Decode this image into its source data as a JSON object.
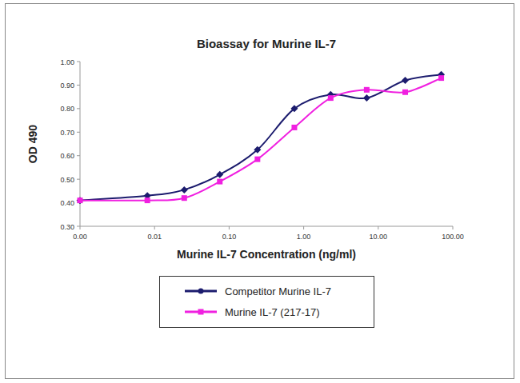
{
  "chart_data": {
    "type": "line",
    "title": "Bioassay for Murine IL-7",
    "x_label": "Murine IL-7 Concentration (ng/ml)",
    "y_label": "OD 490",
    "log": "x",
    "grid": false,
    "legend": "bottom",
    "x": [
      0.001,
      0.008,
      0.025,
      0.075,
      0.24,
      0.75,
      2.3,
      7,
      23,
      70
    ],
    "xlim": [
      0.001,
      100
    ],
    "xticks": [
      {
        "value": 0.001,
        "label": "0.00"
      },
      {
        "value": 0.01,
        "label": "0.01"
      },
      {
        "value": 0.1,
        "label": "0.10"
      },
      {
        "value": 1,
        "label": "1.00"
      },
      {
        "value": 10,
        "label": "10.00"
      },
      {
        "value": 100,
        "label": "100.00"
      }
    ],
    "ylim": [
      0.3,
      1.0
    ],
    "yticks": [
      {
        "value": 0.3,
        "label": "0.30"
      },
      {
        "value": 0.4,
        "label": "0.40"
      },
      {
        "value": 0.5,
        "label": "0.50"
      },
      {
        "value": 0.6,
        "label": "0.60"
      },
      {
        "value": 0.7,
        "label": "0.70"
      },
      {
        "value": 0.8,
        "label": "0.80"
      },
      {
        "value": 0.9,
        "label": "0.90"
      },
      {
        "value": 1.0,
        "label": "1.00"
      }
    ],
    "series": [
      {
        "name": "Competitor Murine IL-7",
        "color": "#1c1c6e",
        "marker": "diamond",
        "line_style": "solid",
        "values": [
          0.41,
          0.43,
          0.455,
          0.52,
          0.625,
          0.8,
          0.86,
          0.845,
          0.92,
          0.945
        ]
      },
      {
        "name": "Murine IL-7 (217-17)",
        "color": "#f020e0",
        "marker": "square",
        "line_style": "solid",
        "values": [
          0.41,
          0.41,
          0.42,
          0.49,
          0.585,
          0.72,
          0.845,
          0.88,
          0.87,
          0.93
        ]
      }
    ]
  }
}
